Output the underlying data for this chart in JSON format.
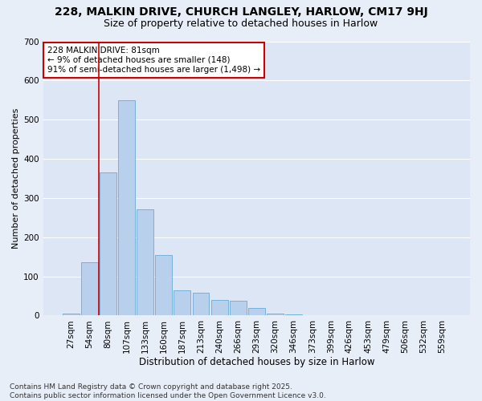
{
  "title1": "228, MALKIN DRIVE, CHURCH LANGLEY, HARLOW, CM17 9HJ",
  "title2": "Size of property relative to detached houses in Harlow",
  "xlabel": "Distribution of detached houses by size in Harlow",
  "ylabel": "Number of detached properties",
  "bar_color": "#b8d0eb",
  "bar_edge_color": "#6aaad4",
  "fig_bg_color": "#e8eef8",
  "ax_bg_color": "#dce6f5",
  "grid_color": "#ffffff",
  "categories": [
    "27sqm",
    "54sqm",
    "80sqm",
    "107sqm",
    "133sqm",
    "160sqm",
    "187sqm",
    "213sqm",
    "240sqm",
    "266sqm",
    "293sqm",
    "320sqm",
    "346sqm",
    "373sqm",
    "399sqm",
    "426sqm",
    "453sqm",
    "479sqm",
    "506sqm",
    "532sqm",
    "559sqm"
  ],
  "values": [
    5,
    135,
    365,
    550,
    270,
    155,
    65,
    58,
    40,
    38,
    20,
    5,
    3,
    1,
    0,
    0,
    0,
    0,
    0,
    0,
    0
  ],
  "red_line_index": 2,
  "annotation_text": "228 MALKIN DRIVE: 81sqm\n← 9% of detached houses are smaller (148)\n91% of semi-detached houses are larger (1,498) →",
  "annotation_box_color": "#ffffff",
  "annotation_border_color": "#cc0000",
  "ylim": [
    0,
    700
  ],
  "yticks": [
    0,
    100,
    200,
    300,
    400,
    500,
    600,
    700
  ],
  "footer": "Contains HM Land Registry data © Crown copyright and database right 2025.\nContains public sector information licensed under the Open Government Licence v3.0.",
  "title1_fontsize": 10,
  "title2_fontsize": 9,
  "xlabel_fontsize": 8.5,
  "ylabel_fontsize": 8,
  "tick_fontsize": 7.5,
  "annot_fontsize": 7.5,
  "footer_fontsize": 6.5
}
